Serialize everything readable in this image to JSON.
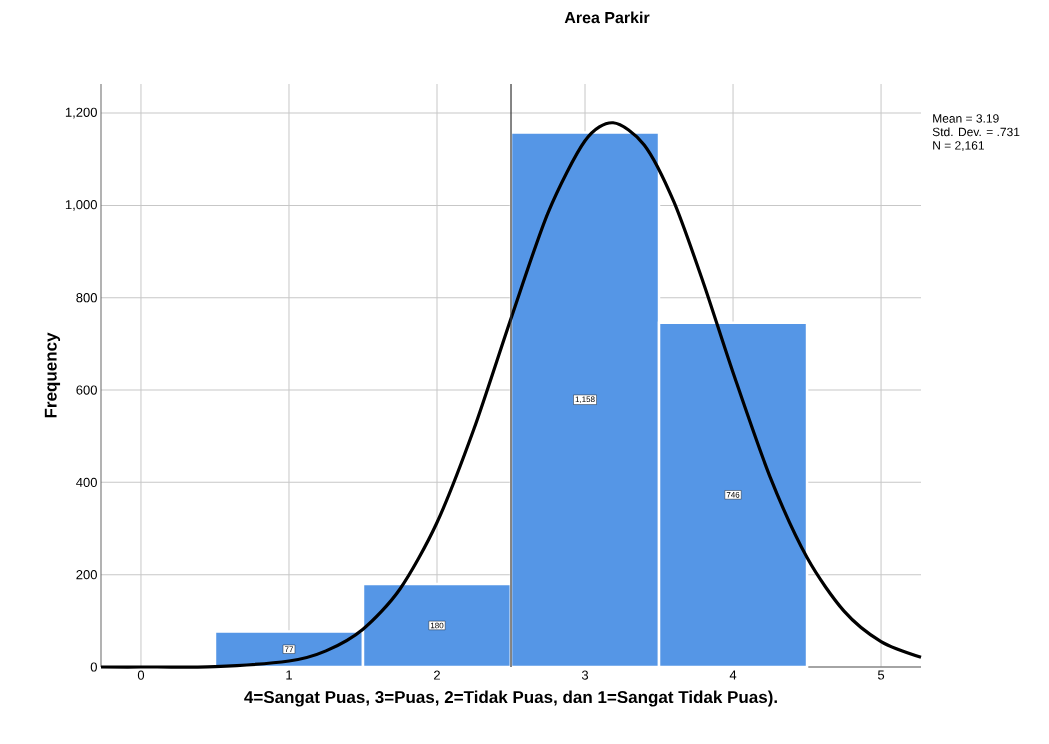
{
  "chart_data": {
    "type": "histogram",
    "title": "Area Parkir",
    "xlabel": "4=Sangat Puas, 3=Puas, 2=Tidak Puas, dan 1=Sangat Tidak Puas).",
    "ylabel": "Frequency",
    "annotations": [
      "Mean = 3.19",
      "Std. Dev. = .731",
      "N = 2,161"
    ],
    "bins": [
      0.5,
      1.5,
      2.5,
      3.5,
      4.5
    ],
    "series": [
      {
        "color": "#5596e6",
        "values": [
          77,
          180,
          1158,
          746
        ],
        "value_labels": [
          "77",
          "180",
          "1,158",
          "746"
        ]
      },
      {
        "type": "line",
        "color": "#000000",
        "x": [
          -0.27,
          0,
          0.5,
          1,
          1.25,
          1.5,
          1.75,
          2,
          2.25,
          2.5,
          2.75,
          3,
          3.19,
          3.4,
          3.6,
          3.8,
          4,
          4.25,
          4.5,
          4.75,
          5,
          5.27
        ],
        "values": [
          0,
          0,
          1,
          13,
          35,
          82,
          169,
          313,
          516,
          755,
          984,
          1140,
          1179,
          1131,
          1008,
          832,
          638,
          412,
          237,
          121,
          55,
          21
        ]
      }
    ],
    "ref_lines": [
      {
        "axis": "x",
        "value": 2.5,
        "color": "#333333"
      }
    ],
    "xlim": [
      -0.27,
      5.27
    ],
    "ylim": [
      0,
      1263
    ],
    "xticks": [
      0,
      1,
      2,
      3,
      4,
      5
    ],
    "yticks": [
      0,
      200,
      400,
      600,
      800,
      {
        "value": 1000,
        "label": "1,000"
      },
      {
        "value": 1200,
        "label": "1,200"
      }
    ],
    "grid": true
  }
}
